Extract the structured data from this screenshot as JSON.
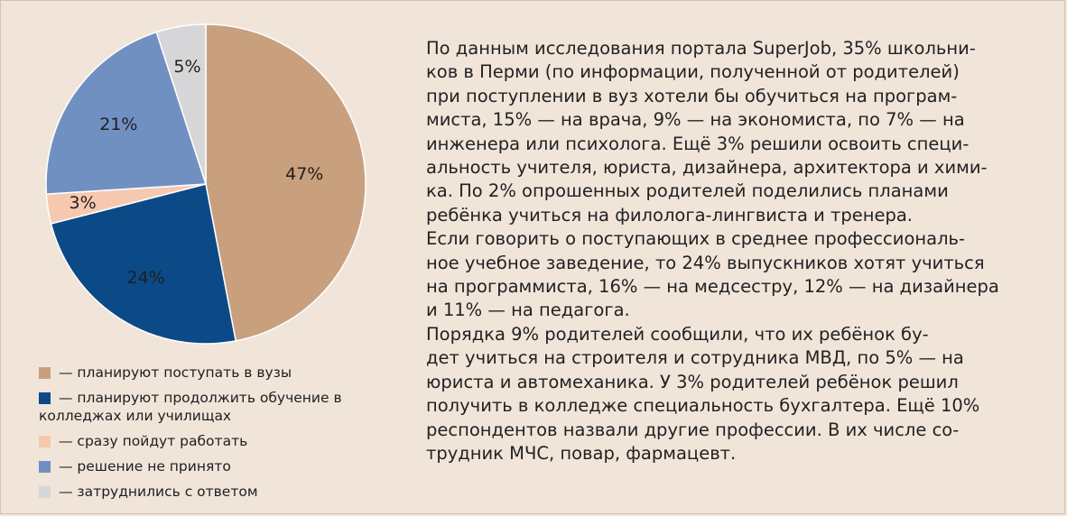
{
  "chart_data": {
    "type": "pie",
    "slices": [
      {
        "label": "— планируют поступать в вузы",
        "value": 47,
        "display": "47%",
        "color": "#c9a07e"
      },
      {
        "label": "— планируют продолжить обучение в колледжах или училищах",
        "value": 24,
        "display": "24%",
        "color": "#0b4a87"
      },
      {
        "label": "— сразу пойдут работать",
        "value": 3,
        "display": "3%",
        "color": "#f7c8b0"
      },
      {
        "label": "— решение не принято",
        "value": 21,
        "display": "21%",
        "color": "#7190c2"
      },
      {
        "label": "— затруднились с ответом",
        "value": 5,
        "display": "5%",
        "color": "#d6d6d8"
      }
    ],
    "legend_position": "bottom-left"
  },
  "legend": {
    "items": [
      {
        "label": "— планируют поступать в вузы",
        "color": "#c9a07e"
      },
      {
        "label": "— планируют продолжить обучение в колледжах или училищах",
        "color": "#0b4a87"
      },
      {
        "label": "— сразу пойдут работать",
        "color": "#f7c8b0"
      },
      {
        "label": "— решение не принято",
        "color": "#7190c2"
      },
      {
        "label": "— затруднились с ответом",
        "color": "#d6d6d8"
      }
    ]
  },
  "article": {
    "lines": [
      "По данным исследования портала SuperJob, 35% школьни-",
      "ков в Перми (по информации, полученной от родителей)",
      "при поступлении в вуз хотели бы обучиться на програм-",
      "миста, 15% — на врача, 9% — на экономиста, по 7% — на",
      "инженера или психолога. Ещё 3% решили освоить специ-",
      "альность учителя, юриста, дизайнера, архитектора и хими-",
      "ка. По 2% опрошенных  родителей поделились планами",
      "ребёнка учиться на филолога-лингвиста и тренера.",
      "Если говорить о поступающих в среднее профессиональ-",
      "ное учебное заведение, то 24% выпускников хотят учиться",
      "на программиста, 16% — на медсестру, 12% — на дизайнера",
      "и 11% — на педагога.",
      "Порядка 9% родителей сообщили, что их ребёнок бу-",
      "дет учиться на строителя и сотрудника МВД, по 5% — на",
      "юриста и автомеханика. У 3% родителей ребёнок решил",
      "получить в колледже специальность бухгалтера. Ещё 10%",
      "респондентов назвали другие профессии. В их числе со-",
      "трудник МЧС, повар, фармацевт."
    ]
  }
}
